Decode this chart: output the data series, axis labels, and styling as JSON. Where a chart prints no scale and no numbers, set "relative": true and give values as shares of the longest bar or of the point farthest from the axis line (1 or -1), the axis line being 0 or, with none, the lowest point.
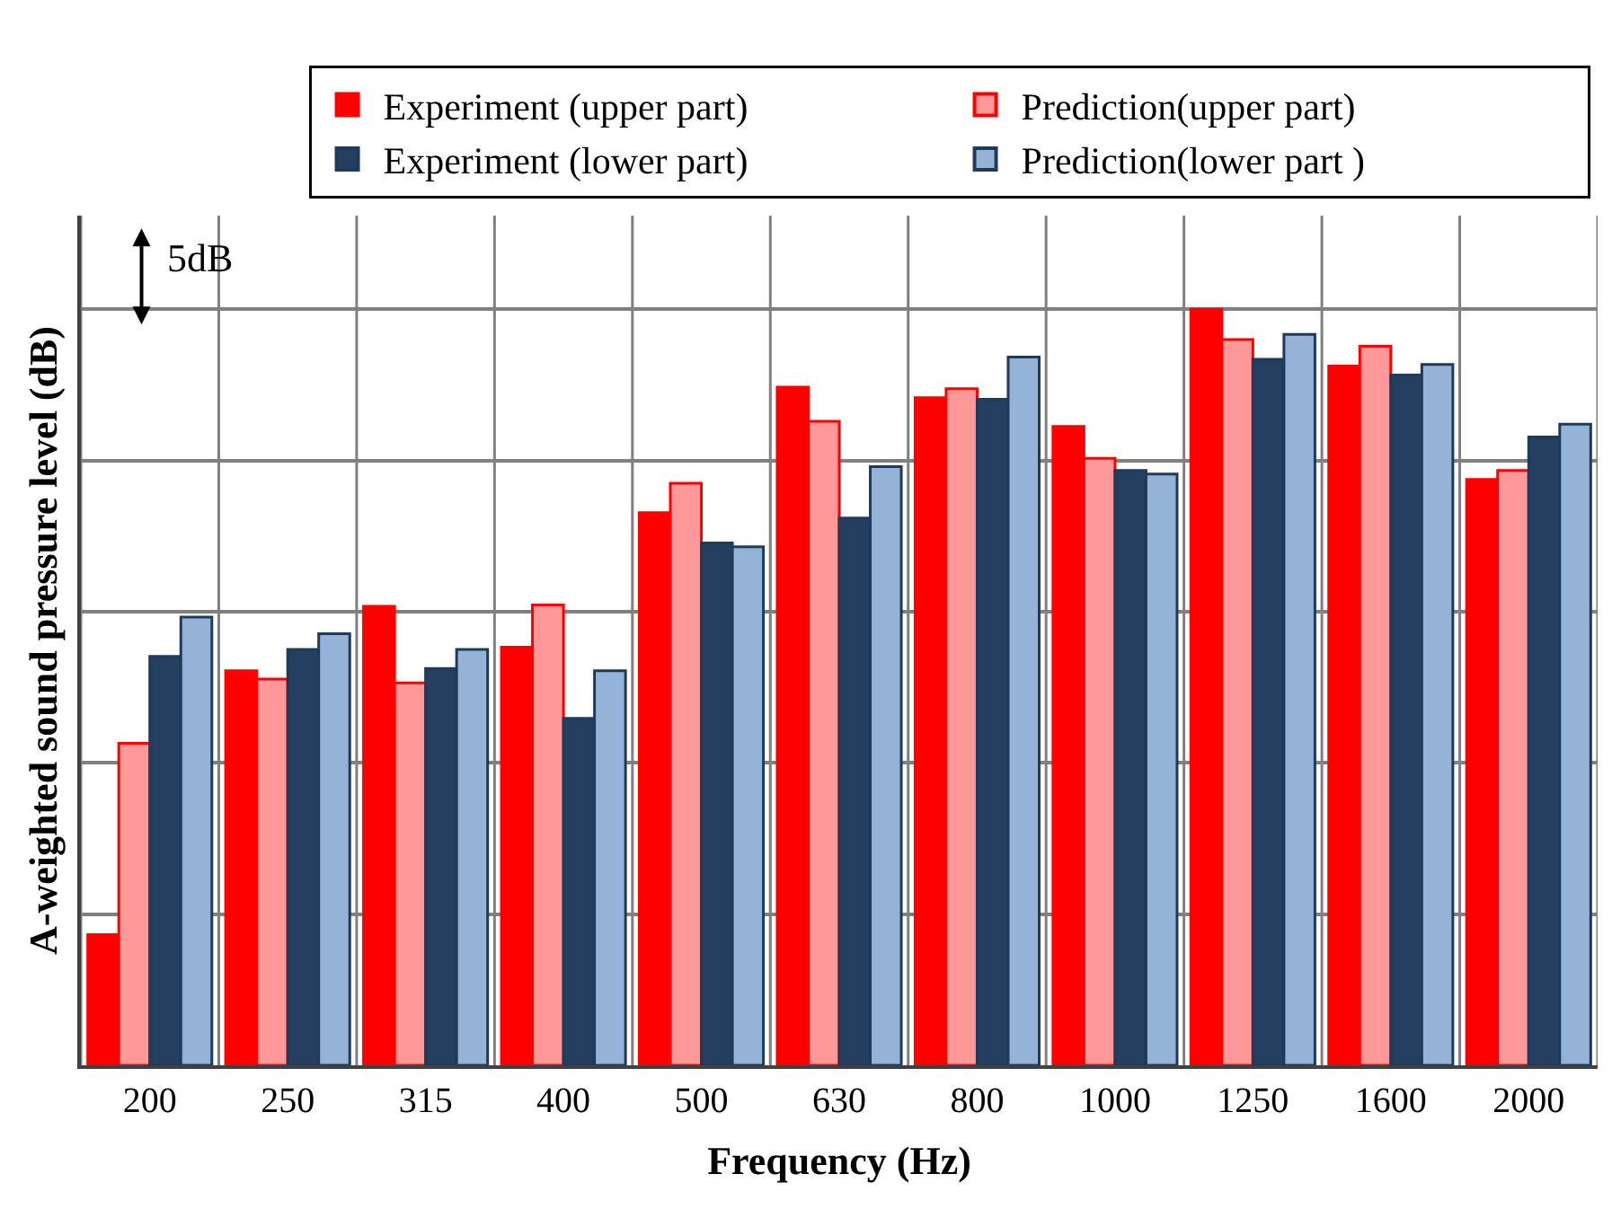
{
  "chart_data": {
    "type": "bar",
    "relative": true,
    "xlabel": "Frequency (Hz)",
    "ylabel": "A-weighted sound pressure level (dB)",
    "categories": [
      "200",
      "250",
      "315",
      "400",
      "500",
      "630",
      "800",
      "1000",
      "1250",
      "1600",
      "2000"
    ],
    "series": [
      {
        "name": "Experiment (upper part)",
        "color": "#ff0000",
        "values": [
          0.173,
          0.522,
          0.607,
          0.553,
          0.731,
          0.897,
          0.883,
          0.845,
          1,
          0.925,
          0.775
        ]
      },
      {
        "name": "Prediction(upper part)",
        "color": "#ff9999",
        "values": [
          0.426,
          0.511,
          0.506,
          0.609,
          0.77,
          0.852,
          0.895,
          0.803,
          0.96,
          0.951,
          0.787
        ]
      },
      {
        "name": "Experiment (lower part)",
        "color": "#243f60",
        "values": [
          0.541,
          0.55,
          0.525,
          0.459,
          0.691,
          0.724,
          0.881,
          0.787,
          0.934,
          0.913,
          0.831
        ]
      },
      {
        "name": "Prediction(lower part )",
        "color": "#95b3d7",
        "values": [
          0.593,
          0.571,
          0.55,
          0.522,
          0.686,
          0.792,
          0.937,
          0.782,
          0.967,
          0.927,
          0.848
        ]
      }
    ],
    "annotations": [
      "5dB"
    ],
    "grid": true,
    "legend": "top right"
  }
}
